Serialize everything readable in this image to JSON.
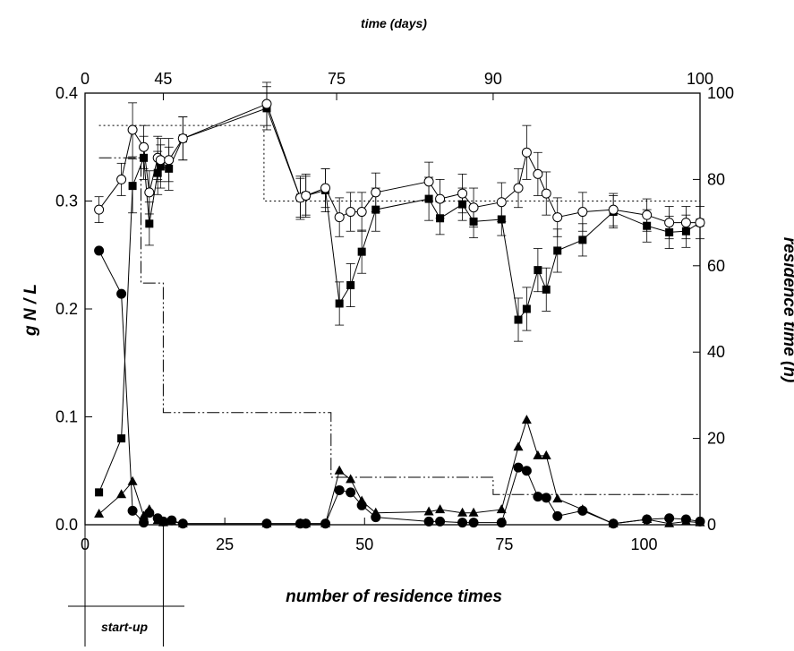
{
  "chart_data": {
    "type": "scatter",
    "title": "",
    "xlabel": "number of residence times",
    "ylabel": "g N / L",
    "x2label": "time (days)",
    "y2label": "residence time (h)",
    "xlim": [
      0,
      110
    ],
    "ylim": [
      0,
      0.4
    ],
    "y2lim": [
      0,
      100
    ],
    "xticks": [
      0,
      25,
      50,
      75,
      100
    ],
    "yticks": [
      0.0,
      0.1,
      0.2,
      0.3,
      0.4
    ],
    "yticks_labels": [
      "0.0",
      "0.1",
      "0.2",
      "0.3",
      "0.4"
    ],
    "y2ticks": [
      0,
      20,
      40,
      60,
      80,
      100
    ],
    "x2ticks": [
      {
        "label": "0",
        "x": 0
      },
      {
        "label": "45",
        "x": 14
      },
      {
        "label": "75",
        "x": 45
      },
      {
        "label": "90",
        "x": 73
      },
      {
        "label": "100",
        "x": 110
      }
    ],
    "annotation": "start-up",
    "startup_x": [
      0,
      14
    ],
    "series": [
      {
        "marker": "open-circle",
        "errorbars": true,
        "points": [
          [
            2.5,
            0.292,
            0.012
          ],
          [
            6.5,
            0.32,
            0.015
          ],
          [
            8.5,
            0.366,
            0.025
          ],
          [
            10.5,
            0.35,
            0.02
          ],
          [
            11.5,
            0.308,
            0.02
          ],
          [
            13.0,
            0.34,
            0.02
          ],
          [
            13.5,
            0.338,
            0.02
          ],
          [
            15.0,
            0.338,
            0.02
          ],
          [
            17.5,
            0.358,
            0.02
          ],
          [
            32.5,
            0.39,
            0.02
          ],
          [
            38.5,
            0.303,
            0.018
          ],
          [
            39.5,
            0.305,
            0.018
          ],
          [
            43.0,
            0.312,
            0.018
          ],
          [
            45.5,
            0.285,
            0.018
          ],
          [
            47.5,
            0.29,
            0.018
          ],
          [
            49.5,
            0.29,
            0.018
          ],
          [
            52.0,
            0.308,
            0.018
          ],
          [
            61.5,
            0.318,
            0.018
          ],
          [
            63.5,
            0.302,
            0.018
          ],
          [
            67.5,
            0.307,
            0.018
          ],
          [
            69.5,
            0.294,
            0.018
          ],
          [
            74.5,
            0.299,
            0.018
          ],
          [
            77.5,
            0.312,
            0.018
          ],
          [
            79.0,
            0.345,
            0.025
          ],
          [
            81.0,
            0.325,
            0.02
          ],
          [
            82.5,
            0.307,
            0.02
          ],
          [
            84.5,
            0.285,
            0.018
          ],
          [
            89.0,
            0.29,
            0.018
          ],
          [
            94.5,
            0.292,
            0.015
          ],
          [
            100.5,
            0.287,
            0.015
          ],
          [
            104.5,
            0.28,
            0.015
          ],
          [
            107.5,
            0.28,
            0.015
          ],
          [
            110.0,
            0.28,
            0.015
          ]
        ]
      },
      {
        "marker": "filled-square",
        "errorbars": true,
        "points": [
          [
            2.5,
            0.03,
            0
          ],
          [
            6.5,
            0.08,
            0
          ],
          [
            8.5,
            0.314,
            0.025
          ],
          [
            10.5,
            0.34,
            0.02
          ],
          [
            11.5,
            0.279,
            0.02
          ],
          [
            13.0,
            0.326,
            0.02
          ],
          [
            13.5,
            0.332,
            0.02
          ],
          [
            15.0,
            0.33,
            0.02
          ],
          [
            17.5,
            0.358,
            0.02
          ],
          [
            32.5,
            0.386,
            0.02
          ],
          [
            38.5,
            0.303,
            0.02
          ],
          [
            39.5,
            0.305,
            0.02
          ],
          [
            43.0,
            0.31,
            0.02
          ],
          [
            45.5,
            0.205,
            0.02
          ],
          [
            47.5,
            0.222,
            0.02
          ],
          [
            49.5,
            0.253,
            0.02
          ],
          [
            52.0,
            0.292,
            0.02
          ],
          [
            61.5,
            0.302,
            0.02
          ],
          [
            63.5,
            0.284,
            0.015
          ],
          [
            67.5,
            0.297,
            0.015
          ],
          [
            69.5,
            0.281,
            0.015
          ],
          [
            74.5,
            0.283,
            0.015
          ],
          [
            77.5,
            0.19,
            0.02
          ],
          [
            79.0,
            0.2,
            0.02
          ],
          [
            81.0,
            0.236,
            0.02
          ],
          [
            82.5,
            0.218,
            0.02
          ],
          [
            84.5,
            0.254,
            0.02
          ],
          [
            89.0,
            0.264,
            0.015
          ],
          [
            94.5,
            0.29,
            0.015
          ],
          [
            100.5,
            0.277,
            0.015
          ],
          [
            104.5,
            0.271,
            0.015
          ],
          [
            107.5,
            0.272,
            0.015
          ],
          [
            110.0,
            0.28,
            0
          ]
        ]
      },
      {
        "marker": "filled-circle",
        "errorbars": false,
        "points": [
          [
            2.5,
            0.254
          ],
          [
            6.5,
            0.214
          ],
          [
            8.5,
            0.013
          ],
          [
            10.5,
            0.002
          ],
          [
            11.5,
            0.011
          ],
          [
            13.0,
            0.006
          ],
          [
            14.0,
            0.003
          ],
          [
            15.5,
            0.004
          ],
          [
            17.5,
            0.001
          ],
          [
            32.5,
            0.001
          ],
          [
            38.5,
            0.001
          ],
          [
            39.5,
            0.001
          ],
          [
            43.0,
            0.001
          ],
          [
            45.5,
            0.032
          ],
          [
            47.5,
            0.03
          ],
          [
            49.5,
            0.018
          ],
          [
            52.0,
            0.007
          ],
          [
            61.5,
            0.003
          ],
          [
            63.5,
            0.003
          ],
          [
            67.5,
            0.002
          ],
          [
            69.5,
            0.002
          ],
          [
            74.5,
            0.002
          ],
          [
            77.5,
            0.053
          ],
          [
            79.0,
            0.05
          ],
          [
            81.0,
            0.026
          ],
          [
            82.5,
            0.025
          ],
          [
            84.5,
            0.008
          ],
          [
            89.0,
            0.013
          ],
          [
            94.5,
            0.001
          ],
          [
            100.5,
            0.005
          ],
          [
            104.5,
            0.006
          ],
          [
            107.5,
            0.005
          ],
          [
            110.0,
            0.003
          ]
        ]
      },
      {
        "marker": "filled-triangle",
        "errorbars": false,
        "points": [
          [
            2.5,
            0.01
          ],
          [
            6.5,
            0.028
          ],
          [
            8.5,
            0.04
          ],
          [
            10.5,
            0.008
          ],
          [
            11.5,
            0.014
          ],
          [
            13.0,
            0.004
          ],
          [
            14.0,
            0.002
          ],
          [
            15.5,
            0.003
          ],
          [
            17.5,
            0.001
          ],
          [
            32.5,
            0.001
          ],
          [
            38.5,
            0.001
          ],
          [
            39.5,
            0.001
          ],
          [
            43.0,
            0.001
          ],
          [
            45.5,
            0.05
          ],
          [
            47.5,
            0.042
          ],
          [
            49.5,
            0.022
          ],
          [
            52.0,
            0.011
          ],
          [
            61.5,
            0.012
          ],
          [
            63.5,
            0.014
          ],
          [
            67.5,
            0.011
          ],
          [
            69.5,
            0.011
          ],
          [
            74.5,
            0.014
          ],
          [
            77.5,
            0.072
          ],
          [
            79.0,
            0.097
          ],
          [
            81.0,
            0.064
          ],
          [
            82.5,
            0.064
          ],
          [
            84.5,
            0.024
          ],
          [
            89.0,
            0.014
          ],
          [
            94.5,
            0.001
          ],
          [
            100.5,
            0.005
          ],
          [
            104.5,
            0.001
          ],
          [
            107.5,
            0.003
          ],
          [
            110.0,
            0.002
          ]
        ]
      }
    ],
    "residence_time_lines": [
      {
        "style": "dotted",
        "points": [
          [
            2.5,
            92.5
          ],
          [
            32.0,
            92.5
          ],
          [
            32.0,
            75.0
          ],
          [
            110.0,
            75.0
          ]
        ]
      },
      {
        "style": "dash-dot",
        "points": [
          [
            2.5,
            85.0
          ],
          [
            10.0,
            85.0
          ],
          [
            10.0,
            56.0
          ],
          [
            14.0,
            56.0
          ],
          [
            14.0,
            26.0
          ],
          [
            44.0,
            26.0
          ],
          [
            44.0,
            11.0
          ],
          [
            73.0,
            11.0
          ],
          [
            73.0,
            7.0
          ],
          [
            110.0,
            7.0
          ]
        ]
      }
    ]
  }
}
